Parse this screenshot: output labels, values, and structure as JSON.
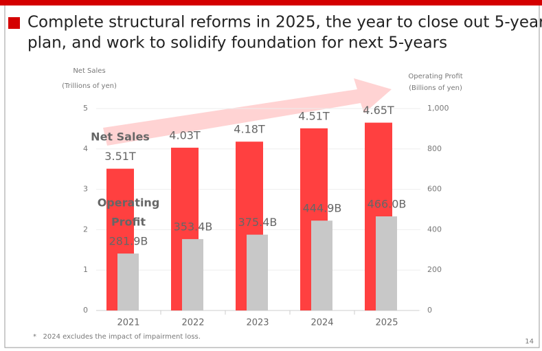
{
  "title_lines": [
    "Complete structural reforms in 2025, the year to close out 5-year",
    "plan, and work to solidify foundation for next 5-years"
  ],
  "chart_data": {
    "type": "bar",
    "y_label": [
      "Net Sales",
      "(Trillions of yen)"
    ],
    "y2_label": [
      "Operating Profit",
      "(Billions of yen)"
    ],
    "categories": [
      "2021",
      "2022",
      "2023",
      "2024",
      "2025"
    ],
    "series": [
      {
        "name": "Net Sales",
        "color": "#ff4040",
        "values": [
          3.51,
          4.03,
          4.18,
          4.51,
          4.65
        ],
        "value_labels": [
          "3.51T",
          "4.03T",
          "4.18T",
          "4.51T",
          "4.65T"
        ]
      },
      {
        "name": "Operating Profit",
        "color": "#c8c8c8",
        "axis": "y2",
        "values": [
          281.9,
          353.4,
          375.4,
          444.9,
          466.0
        ],
        "value_labels": [
          "281.9B",
          "353.4B",
          "375.4B",
          "444.9B",
          "466.0B"
        ]
      }
    ],
    "annotations": [
      "Net Sales",
      "Operating",
      "Profit"
    ],
    "ylim": [
      0,
      5
    ],
    "yticks": [
      0,
      1,
      2,
      3,
      4,
      5
    ],
    "y2lim": [
      0,
      1000
    ],
    "y2ticks": [
      0,
      200,
      400,
      600,
      800,
      {
        "value": 1000,
        "label": "1,000"
      }
    ],
    "grid": true
  },
  "footnote": "*   2024 excludes the impact of impairment loss.",
  "page_number": "14"
}
